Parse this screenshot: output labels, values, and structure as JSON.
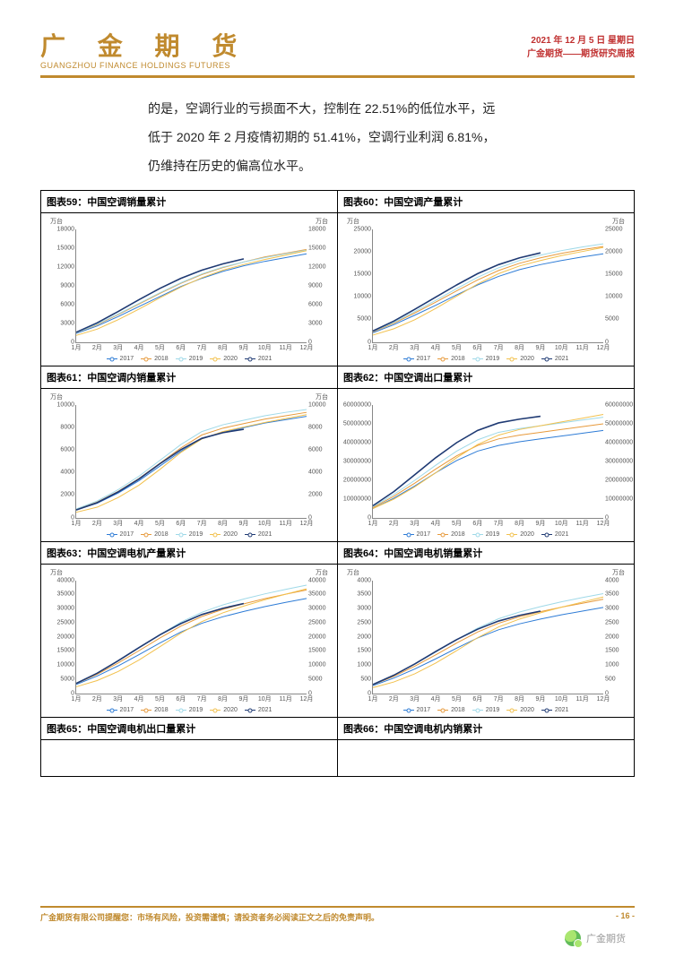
{
  "header": {
    "logo_cn": "广 金 期 货",
    "logo_en": "GUANGZHOU FINANCE HOLDINGS FUTURES",
    "date_line": "2021 年 12 月 5 日 星期日",
    "sub_line": "广金期货——期货研究周报"
  },
  "body": {
    "p1": "的是，空调行业的亏损面不大，控制在 22.51%的低位水平，远",
    "p2": "低于 2020 年 2 月疫情初期的 51.41%，空调行业利润 6.81%，",
    "p3": "仍维持在历史的偏高位水平。"
  },
  "series_colors": {
    "2017": "#2e7cd6",
    "2018": "#e79a3c",
    "2019": "#9fd9e8",
    "2020": "#f2c14e",
    "2021": "#1f3a73"
  },
  "legend_labels": [
    "2017",
    "2018",
    "2019",
    "2020",
    "2021"
  ],
  "x_labels": [
    "1月",
    "2月",
    "3月",
    "4月",
    "5月",
    "6月",
    "7月",
    "8月",
    "9月",
    "10月",
    "11月",
    "12月"
  ],
  "charts": [
    {
      "id": "c59",
      "title": "图表59：中国空调销量累计",
      "unit_left": "万台",
      "unit_right": "万台",
      "y_ticks": [
        0,
        3000,
        6000,
        9000,
        12000,
        15000,
        18000
      ],
      "ymax": 18000,
      "series": {
        "2017": [
          1400,
          2600,
          4100,
          5700,
          7300,
          8900,
          10200,
          11300,
          12200,
          12900,
          13500,
          14100
        ],
        "2018": [
          1500,
          2800,
          4400,
          6100,
          7800,
          9400,
          10800,
          11900,
          12800,
          13600,
          14200,
          14800
        ],
        "2019": [
          1500,
          2900,
          4500,
          6200,
          7900,
          9500,
          10900,
          12000,
          12800,
          13500,
          14100,
          14700
        ],
        "2020": [
          1100,
          2100,
          3600,
          5300,
          7100,
          8800,
          10300,
          11500,
          12400,
          13200,
          13900,
          14600
        ],
        "2021": [
          1600,
          3100,
          4900,
          6800,
          8600,
          10200,
          11500,
          12500,
          13300
        ]
      }
    },
    {
      "id": "c60",
      "title": "图表60：中国空调产量累计",
      "unit_left": "万台",
      "unit_right": "万台",
      "y_ticks": [
        0,
        5000,
        10000,
        15000,
        20000,
        25000
      ],
      "ymax": 25000,
      "series": {
        "2017": [
          2100,
          3900,
          6000,
          8200,
          10500,
          12700,
          14600,
          16100,
          17200,
          18100,
          18900,
          19600
        ],
        "2018": [
          2300,
          4200,
          6500,
          8900,
          11400,
          13800,
          15900,
          17500,
          18700,
          19700,
          20500,
          21200
        ],
        "2019": [
          2400,
          4400,
          6800,
          9300,
          11900,
          14400,
          16500,
          18100,
          19300,
          20300,
          21100,
          21800
        ],
        "2020": [
          1600,
          3000,
          5000,
          7500,
          10200,
          12900,
          15200,
          16900,
          18100,
          19200,
          20100,
          21000
        ],
        "2021": [
          2500,
          4700,
          7300,
          10000,
          12700,
          15200,
          17200,
          18700,
          19800
        ]
      }
    },
    {
      "id": "c61",
      "title": "图表61：中国空调内销量累计",
      "unit_left": "万台",
      "unit_right": "万台",
      "y_ticks": [
        0,
        2000,
        4000,
        6000,
        8000,
        10000
      ],
      "ymax": 10000,
      "series": {
        "2017": [
          700,
          1300,
          2200,
          3300,
          4600,
          5900,
          7000,
          7600,
          8000,
          8400,
          8700,
          9000
        ],
        "2018": [
          750,
          1400,
          2350,
          3500,
          4850,
          6200,
          7350,
          7950,
          8350,
          8750,
          9050,
          9350
        ],
        "2019": [
          800,
          1500,
          2500,
          3700,
          5100,
          6500,
          7650,
          8250,
          8650,
          9050,
          9350,
          9600
        ],
        "2020": [
          500,
          950,
          1800,
          2900,
          4300,
          5800,
          7000,
          7650,
          8050,
          8450,
          8800,
          9150
        ],
        "2021": [
          700,
          1350,
          2300,
          3450,
          4800,
          6050,
          7050,
          7550,
          7850
        ]
      }
    },
    {
      "id": "c62",
      "title": "图表62：中国空调出口量累计",
      "unit_left": "",
      "unit_right": "",
      "y_ticks": [
        0,
        10000000,
        20000000,
        30000000,
        40000000,
        50000000,
        60000000
      ],
      "ymax": 60000000,
      "series": {
        "2017": [
          5000000,
          10500000,
          17000000,
          24000000,
          30500000,
          35500000,
          38500000,
          40500000,
          42000000,
          43500000,
          45000000,
          46500000
        ],
        "2018": [
          5500000,
          11500000,
          18500000,
          26000000,
          33000000,
          38500000,
          42000000,
          44000000,
          45500000,
          47000000,
          48500000,
          50000000
        ],
        "2019": [
          6000000,
          12500000,
          20000000,
          28000000,
          35500000,
          41500000,
          45500000,
          47500000,
          49000000,
          50500000,
          52000000,
          53500000
        ],
        "2020": [
          5000000,
          10000000,
          16500000,
          24000000,
          32000000,
          39000000,
          44000000,
          47000000,
          49000000,
          51000000,
          53000000,
          55000000
        ],
        "2021": [
          6500000,
          14000000,
          23000000,
          32000000,
          40000000,
          46500000,
          50500000,
          52500000,
          54000000
        ]
      }
    },
    {
      "id": "c63",
      "title": "图表63：中国空调电机产量累计",
      "unit_left": "万台",
      "unit_right": "万台",
      "y_ticks": [
        0,
        5000,
        10000,
        15000,
        20000,
        25000,
        30000,
        35000,
        40000
      ],
      "ymax": 40000,
      "series": {
        "2017": [
          3200,
          6200,
          9800,
          13800,
          17900,
          21800,
          24900,
          27200,
          29100,
          30800,
          32300,
          33700
        ],
        "2018": [
          3500,
          6800,
          10800,
          15200,
          19700,
          23900,
          27300,
          29800,
          31800,
          33600,
          35200,
          36700
        ],
        "2019": [
          3700,
          7200,
          11500,
          16200,
          20900,
          25300,
          28800,
          31400,
          33500,
          35300,
          36900,
          38400
        ],
        "2020": [
          2400,
          4600,
          7800,
          11900,
          16600,
          21400,
          25500,
          28600,
          31000,
          33200,
          35200,
          37100
        ],
        "2021": [
          3600,
          7200,
          11600,
          16300,
          20800,
          24800,
          28000,
          30200,
          31900
        ]
      }
    },
    {
      "id": "c64",
      "title": "图表64：中国空调电机销量累计",
      "unit_left": "万台",
      "unit_right": "万台",
      "y_ticks": [
        0,
        500,
        1000,
        1500,
        2000,
        2500,
        3000,
        3500,
        4000
      ],
      "ymax": 4000,
      "series": {
        "2017": [
          280,
          550,
          870,
          1230,
          1610,
          1970,
          2260,
          2470,
          2640,
          2790,
          2920,
          3050
        ],
        "2018": [
          310,
          610,
          970,
          1370,
          1790,
          2180,
          2490,
          2720,
          2900,
          3060,
          3200,
          3340
        ],
        "2019": [
          330,
          650,
          1040,
          1470,
          1910,
          2320,
          2650,
          2890,
          3080,
          3250,
          3400,
          3540
        ],
        "2020": [
          210,
          410,
          700,
          1080,
          1520,
          1980,
          2360,
          2640,
          2860,
          3060,
          3240,
          3420
        ],
        "2021": [
          320,
          650,
          1050,
          1490,
          1910,
          2280,
          2570,
          2770,
          2920
        ]
      }
    },
    {
      "id": "c65",
      "title": "图表65：中国空调电机出口量累计",
      "stub": true
    },
    {
      "id": "c66",
      "title": "图表66：中国空调电机内销累计",
      "stub": true
    }
  ],
  "footer": {
    "disclaimer": "广金期货有限公司提醒您：市场有风险，投资需谨慎；请投资者务必阅读正文之后的免责声明。",
    "page": "- 16 -"
  },
  "watermark": "广金期货"
}
